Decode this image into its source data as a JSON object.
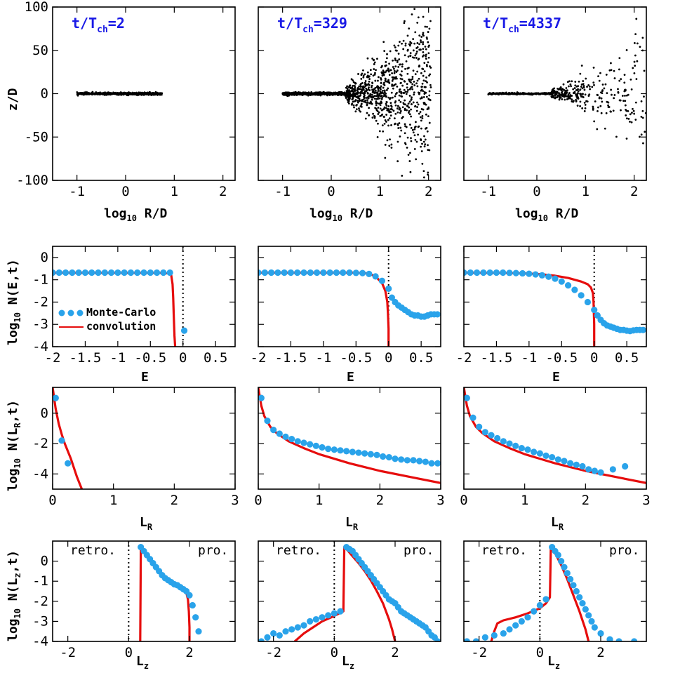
{
  "colors": {
    "monte_carlo": "#2aa3ea",
    "convolution": "#e60d0d",
    "time_label": "#1a1ae6",
    "points": "#000000"
  },
  "time_labels": [
    {
      "main": "t/T",
      "sub": "ch",
      "value": "=2"
    },
    {
      "main": "t/T",
      "sub": "ch",
      "value": "=329"
    },
    {
      "main": "t/T",
      "sub": "ch",
      "value": "=4337"
    }
  ],
  "axis_labels": {
    "row0_x": {
      "main": "log",
      "sub": "10",
      "rest": " R/D"
    },
    "row0_y": "z/D",
    "row1_x": "E",
    "row1_y": {
      "main": "log",
      "sub": "10",
      "rest": " N(E,t)"
    },
    "row2_x": {
      "main": "L",
      "sub": "R"
    },
    "row2_y": {
      "main": "log",
      "sub": "10",
      "rest": " N(L",
      "sub2": "R",
      "rest2": ",t)"
    },
    "row3_x": {
      "main": "L",
      "sub": "z"
    },
    "row3_y": {
      "main": "log",
      "sub": "10",
      "rest": " N(L",
      "sub2": "z",
      "rest2": ",t)"
    }
  },
  "legend": {
    "monte_carlo": "Monte-Carlo",
    "convolution": "convolution"
  },
  "annotations": {
    "retro": "retro.",
    "pro": "pro."
  },
  "ticks": {
    "row0_x": [
      "-1",
      "0",
      "1",
      "2"
    ],
    "row0_y": [
      "100",
      "50",
      "0",
      "-50",
      "-100"
    ],
    "row1_x": [
      "-2",
      "-1.5",
      "-1",
      "-0.5",
      "0",
      "0.5"
    ],
    "row1_y": [
      "0",
      "-1",
      "-2",
      "-3",
      "-4"
    ],
    "row2_x": [
      "0",
      "1",
      "2",
      "3"
    ],
    "row2_y": [
      "0",
      "-2",
      "-4"
    ],
    "row3_x": [
      "-2",
      "0",
      "2"
    ],
    "row3_y": [
      "0",
      "-1",
      "-2",
      "-3",
      "-4"
    ]
  },
  "chart_data": [
    {
      "type": "scatter",
      "row": 0,
      "panels": [
        {
          "time": "t/Tch=2",
          "description": "thin disk of points",
          "x_range": [
            -1.0,
            0.75
          ],
          "z_spread": [
            0.7,
            0.3,
            8.0
          ]
        },
        {
          "time": "t/Tch=329",
          "x_range": [
            -1.0,
            2.05
          ],
          "z_spread": [
            1.5,
            0.35,
            0.55
          ]
        },
        {
          "time": "t/Tch=4337",
          "x_range": [
            -1.0,
            2.25
          ],
          "z_spread": [
            1.0,
            0.3,
            0.35
          ]
        }
      ],
      "xlabel": "log10 R/D",
      "ylabel": "z/D",
      "xlim": [
        -1.5,
        2.25
      ],
      "ylim": [
        -100,
        100
      ]
    },
    {
      "type": "line",
      "row": 1,
      "xlabel": "E",
      "ylabel": "log10 N(E,t)",
      "xlim": [
        -2,
        0.8
      ],
      "ylim": [
        -4,
        0.5
      ],
      "reference_line_x": 0,
      "panels": [
        {
          "monte_carlo": {
            "x": [
              -2,
              -1.9,
              -1.8,
              -1.7,
              -1.6,
              -1.5,
              -1.4,
              -1.3,
              -1.2,
              -1.1,
              -1.0,
              -0.9,
              -0.8,
              -0.7,
              -0.6,
              -0.5,
              -0.4,
              -0.3,
              -0.2,
              0.02
            ],
            "y": [
              -0.68,
              -0.68,
              -0.68,
              -0.68,
              -0.68,
              -0.68,
              -0.68,
              -0.68,
              -0.68,
              -0.68,
              -0.68,
              -0.68,
              -0.68,
              -0.68,
              -0.68,
              -0.68,
              -0.68,
              -0.68,
              -0.68,
              -3.28
            ]
          },
          "convolution": {
            "x": [
              -2,
              -0.3,
              -0.2,
              -0.18,
              -0.16,
              -0.15,
              -0.14,
              -0.13,
              -0.12
            ],
            "y": [
              -0.68,
              -0.69,
              -0.72,
              -0.8,
              -1.2,
              -1.8,
              -2.7,
              -3.5,
              -4.0
            ]
          }
        },
        {
          "monte_carlo": {
            "x": [
              -2,
              -1.9,
              -1.8,
              -1.7,
              -1.6,
              -1.5,
              -1.4,
              -1.3,
              -1.2,
              -1.1,
              -1.0,
              -0.9,
              -0.8,
              -0.7,
              -0.6,
              -0.5,
              -0.4,
              -0.3,
              -0.2,
              -0.1,
              0.0,
              0.05,
              0.1,
              0.15,
              0.2,
              0.25,
              0.3,
              0.35,
              0.4,
              0.45,
              0.5,
              0.55,
              0.6,
              0.65,
              0.7,
              0.75
            ],
            "y": [
              -0.68,
              -0.68,
              -0.68,
              -0.68,
              -0.68,
              -0.68,
              -0.68,
              -0.68,
              -0.68,
              -0.68,
              -0.68,
              -0.68,
              -0.68,
              -0.68,
              -0.68,
              -0.69,
              -0.7,
              -0.74,
              -0.85,
              -1.05,
              -1.4,
              -1.8,
              -2.0,
              -2.15,
              -2.25,
              -2.35,
              -2.45,
              -2.55,
              -2.6,
              -2.6,
              -2.65,
              -2.65,
              -2.6,
              -2.55,
              -2.55,
              -2.55
            ]
          },
          "convolution": {
            "x": [
              -2,
              -0.5,
              -0.3,
              -0.2,
              -0.1,
              -0.05,
              -0.02,
              -0.01,
              0.0,
              0.0
            ],
            "y": [
              -0.68,
              -0.68,
              -0.72,
              -0.85,
              -1.15,
              -1.5,
              -2.0,
              -2.5,
              -3.2,
              -4.0
            ]
          }
        },
        {
          "monte_carlo": {
            "x": [
              -2,
              -1.9,
              -1.8,
              -1.7,
              -1.6,
              -1.5,
              -1.4,
              -1.3,
              -1.2,
              -1.1,
              -1.0,
              -0.9,
              -0.8,
              -0.7,
              -0.6,
              -0.5,
              -0.4,
              -0.3,
              -0.2,
              -0.1,
              0.0,
              0.05,
              0.1,
              0.15,
              0.2,
              0.25,
              0.3,
              0.35,
              0.4,
              0.45,
              0.5,
              0.55,
              0.6,
              0.65,
              0.7,
              0.75
            ],
            "y": [
              -0.68,
              -0.68,
              -0.68,
              -0.68,
              -0.68,
              -0.68,
              -0.68,
              -0.69,
              -0.7,
              -0.71,
              -0.73,
              -0.76,
              -0.8,
              -0.86,
              -0.95,
              -1.08,
              -1.25,
              -1.45,
              -1.7,
              -2.0,
              -2.35,
              -2.6,
              -2.8,
              -2.95,
              -3.05,
              -3.1,
              -3.15,
              -3.2,
              -3.25,
              -3.25,
              -3.28,
              -3.3,
              -3.27,
              -3.25,
              -3.25,
              -3.25
            ]
          },
          "convolution": {
            "x": [
              -2,
              -1.4,
              -1.0,
              -0.8,
              -0.6,
              -0.4,
              -0.2,
              -0.1,
              -0.05,
              -0.02,
              -0.01,
              0.0,
              0.0
            ],
            "y": [
              -0.68,
              -0.69,
              -0.72,
              -0.76,
              -0.82,
              -0.92,
              -1.08,
              -1.2,
              -1.35,
              -1.6,
              -2.0,
              -3.0,
              -4.0
            ]
          }
        }
      ]
    },
    {
      "type": "line",
      "row": 2,
      "xlabel": "LR",
      "ylabel": "log10 N(LR,t)",
      "xlim": [
        0,
        3
      ],
      "ylim": [
        -5,
        1.7
      ],
      "panels": [
        {
          "monte_carlo": {
            "x": [
              0.05,
              0.15,
              0.25
            ],
            "y": [
              1.0,
              -1.8,
              -3.3
            ]
          },
          "convolution": {
            "x": [
              0.0,
              0.05,
              0.1,
              0.15,
              0.2,
              0.3,
              0.4,
              0.48
            ],
            "y": [
              1.7,
              0.3,
              -0.7,
              -1.4,
              -2.0,
              -3.0,
              -4.2,
              -5.0
            ]
          }
        },
        {
          "monte_carlo": {
            "x": [
              0.05,
              0.15,
              0.25,
              0.35,
              0.45,
              0.55,
              0.65,
              0.75,
              0.85,
              0.95,
              1.05,
              1.15,
              1.25,
              1.35,
              1.45,
              1.55,
              1.65,
              1.75,
              1.85,
              1.95,
              2.05,
              2.15,
              2.25,
              2.35,
              2.45,
              2.55,
              2.65,
              2.75,
              2.85,
              2.95
            ],
            "y": [
              1.0,
              -0.5,
              -1.1,
              -1.35,
              -1.55,
              -1.7,
              -1.85,
              -1.95,
              -2.05,
              -2.15,
              -2.25,
              -2.35,
              -2.4,
              -2.45,
              -2.5,
              -2.55,
              -2.6,
              -2.65,
              -2.7,
              -2.75,
              -2.85,
              -2.9,
              -3.0,
              -3.05,
              -3.1,
              -3.1,
              -3.15,
              -3.2,
              -3.3,
              -3.3
            ]
          },
          "convolution": {
            "x": [
              0.0,
              0.05,
              0.1,
              0.2,
              0.3,
              0.5,
              0.75,
              1.0,
              1.5,
              2.0,
              2.5,
              3.0
            ],
            "y": [
              1.7,
              0.5,
              -0.2,
              -0.9,
              -1.3,
              -1.85,
              -2.3,
              -2.7,
              -3.3,
              -3.8,
              -4.2,
              -4.6
            ]
          }
        },
        {
          "monte_carlo": {
            "x": [
              0.05,
              0.15,
              0.25,
              0.35,
              0.45,
              0.55,
              0.65,
              0.75,
              0.85,
              0.95,
              1.05,
              1.15,
              1.25,
              1.35,
              1.45,
              1.55,
              1.65,
              1.75,
              1.85,
              1.95,
              2.05,
              2.15,
              2.25,
              2.45,
              2.65
            ],
            "y": [
              1.0,
              -0.3,
              -0.9,
              -1.25,
              -1.45,
              -1.65,
              -1.85,
              -2.0,
              -2.15,
              -2.3,
              -2.4,
              -2.55,
              -2.65,
              -2.8,
              -2.9,
              -3.05,
              -3.15,
              -3.3,
              -3.4,
              -3.5,
              -3.7,
              -3.8,
              -3.9,
              -3.7,
              -3.5
            ]
          },
          "convolution": {
            "x": [
              0.0,
              0.05,
              0.1,
              0.2,
              0.3,
              0.5,
              0.75,
              1.0,
              1.5,
              2.0,
              2.5,
              3.0
            ],
            "y": [
              1.7,
              0.5,
              -0.2,
              -0.9,
              -1.3,
              -1.85,
              -2.3,
              -2.7,
              -3.3,
              -3.8,
              -4.2,
              -4.6
            ]
          }
        }
      ]
    },
    {
      "type": "line",
      "row": 3,
      "xlabel": "Lz",
      "ylabel": "log10 N(Lz,t)",
      "xlim": [
        -2.5,
        3.5
      ],
      "ylim": [
        -4,
        1
      ],
      "reference_line_x": 0,
      "panels": [
        {
          "monte_carlo": {
            "x": [
              0.4,
              0.5,
              0.6,
              0.7,
              0.8,
              0.9,
              1.0,
              1.1,
              1.2,
              1.3,
              1.4,
              1.5,
              1.6,
              1.7,
              1.8,
              1.9,
              2.0,
              2.1,
              2.2,
              2.3
            ],
            "y": [
              0.7,
              0.5,
              0.3,
              0.1,
              -0.1,
              -0.3,
              -0.5,
              -0.7,
              -0.85,
              -0.95,
              -1.05,
              -1.15,
              -1.2,
              -1.3,
              -1.4,
              -1.5,
              -1.7,
              -2.2,
              -2.8,
              -3.5
            ]
          },
          "convolution": {
            "x": [
              0.38,
              0.4,
              0.43,
              0.5,
              0.7,
              1.0,
              1.3,
              1.6,
              1.8,
              1.9,
              1.95,
              1.98,
              2.0,
              2.0
            ],
            "y": [
              -4.0,
              0.75,
              0.7,
              0.45,
              0.0,
              -0.55,
              -0.95,
              -1.25,
              -1.45,
              -1.6,
              -1.9,
              -2.5,
              -3.3,
              -4.0
            ]
          }
        },
        {
          "monte_carlo": {
            "x": [
              -2.4,
              -2.2,
              -2.0,
              -1.8,
              -1.6,
              -1.4,
              -1.2,
              -1.0,
              -0.8,
              -0.6,
              -0.4,
              -0.2,
              0.0,
              0.2,
              0.4,
              0.5,
              0.6,
              0.7,
              0.8,
              0.9,
              1.0,
              1.1,
              1.2,
              1.3,
              1.4,
              1.5,
              1.6,
              1.7,
              1.8,
              1.9,
              2.0,
              2.1,
              2.2,
              2.3,
              2.4,
              2.5,
              2.6,
              2.7,
              2.8,
              2.9,
              3.0,
              3.1,
              3.2,
              3.3,
              3.4
            ],
            "y": [
              -4.0,
              -3.8,
              -3.6,
              -3.7,
              -3.5,
              -3.4,
              -3.3,
              -3.2,
              -3.0,
              -2.9,
              -2.8,
              -2.7,
              -2.6,
              -2.5,
              0.7,
              0.6,
              0.5,
              0.3,
              0.1,
              -0.1,
              -0.3,
              -0.5,
              -0.7,
              -0.9,
              -1.1,
              -1.3,
              -1.5,
              -1.7,
              -1.9,
              -2.0,
              -2.1,
              -2.3,
              -2.5,
              -2.6,
              -2.7,
              -2.8,
              -2.9,
              -3.0,
              -3.1,
              -3.2,
              -3.3,
              -3.5,
              -3.7,
              -3.8,
              -4.0
            ]
          },
          "convolution": {
            "x": [
              -1.3,
              -1.0,
              -0.7,
              -0.4,
              -0.1,
              0.1,
              0.3,
              0.33,
              0.4,
              0.6,
              0.8,
              1.0,
              1.2,
              1.4,
              1.6,
              1.8,
              1.9,
              2.0
            ],
            "y": [
              -4.0,
              -3.6,
              -3.3,
              -3.0,
              -2.8,
              -2.65,
              -2.5,
              0.7,
              0.6,
              0.25,
              -0.1,
              -0.5,
              -0.95,
              -1.5,
              -2.1,
              -2.9,
              -3.4,
              -4.0
            ]
          }
        },
        {
          "monte_carlo": {
            "x": [
              -2.4,
              -2.1,
              -1.8,
              -1.5,
              -1.2,
              -1.0,
              -0.8,
              -0.6,
              -0.4,
              -0.2,
              0.0,
              0.2,
              0.4,
              0.5,
              0.6,
              0.7,
              0.8,
              0.9,
              1.0,
              1.1,
              1.2,
              1.3,
              1.4,
              1.5,
              1.6,
              1.7,
              1.8,
              2.0,
              2.3,
              2.6,
              3.1
            ],
            "y": [
              -4.0,
              -4.0,
              -3.8,
              -3.7,
              -3.6,
              -3.4,
              -3.2,
              -3.0,
              -2.8,
              -2.5,
              -2.2,
              -1.9,
              0.7,
              0.5,
              0.3,
              0.0,
              -0.3,
              -0.6,
              -0.9,
              -1.2,
              -1.5,
              -1.8,
              -2.1,
              -2.4,
              -2.7,
              -3.0,
              -3.3,
              -3.6,
              -3.9,
              -4.0,
              -4.0
            ]
          },
          "convolution": {
            "x": [
              -1.6,
              -1.5,
              -1.4,
              -1.2,
              -0.8,
              -0.4,
              0.0,
              0.2,
              0.33,
              0.36,
              0.4,
              0.5,
              0.7,
              0.9,
              1.1,
              1.3,
              1.5,
              1.6
            ],
            "y": [
              -4.0,
              -3.5,
              -3.1,
              -2.95,
              -2.8,
              -2.6,
              -2.35,
              -2.1,
              -1.8,
              0.7,
              0.6,
              0.4,
              -0.2,
              -0.9,
              -1.7,
              -2.5,
              -3.4,
              -4.0
            ]
          }
        }
      ]
    }
  ]
}
